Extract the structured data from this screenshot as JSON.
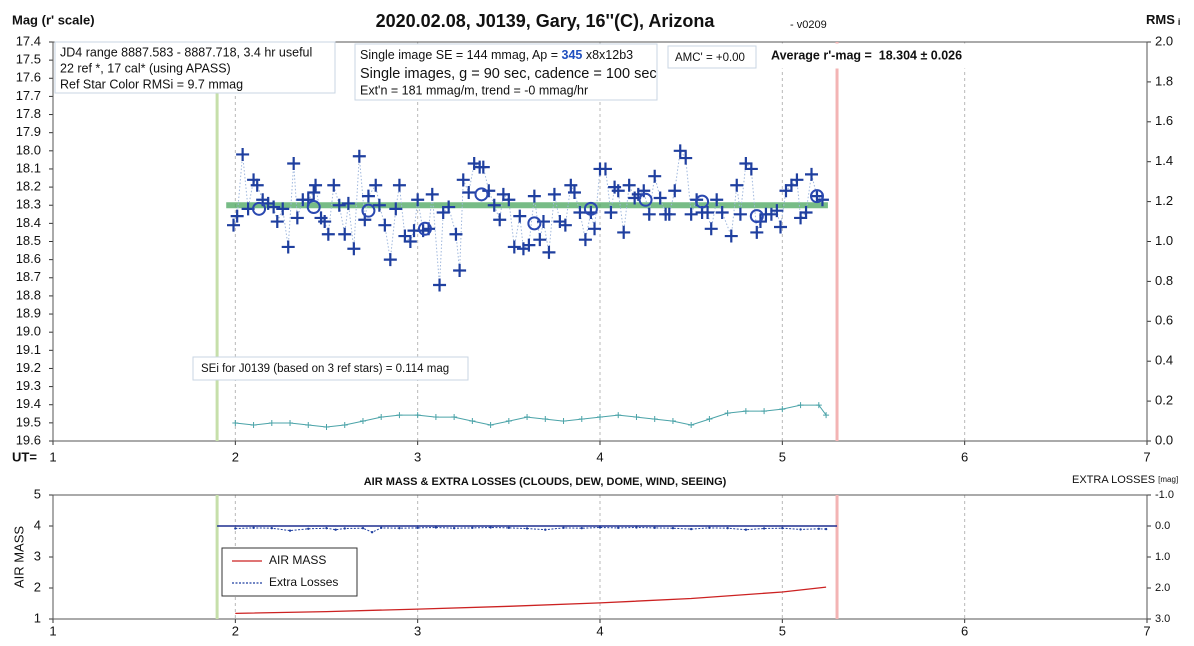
{
  "chart_data": [
    {
      "type": "scatter",
      "title": "2020.02.08, J0139, Gary, 16''(C), Arizona",
      "subtitle": "- v0209",
      "ylabel": "Mag (r' scale)",
      "y2label": "RMS",
      "y2label_subscript": "i",
      "xlabel": "UT=",
      "xlim": [
        1,
        7
      ],
      "xticks": [
        1,
        2,
        3,
        4,
        5,
        6,
        7
      ],
      "ylim": [
        19.6,
        17.4
      ],
      "yticks": [
        {
          "value": 17.4,
          "label": "17.4"
        },
        {
          "value": 17.5,
          "label": "17.5"
        },
        {
          "value": 17.6,
          "label": "17.6"
        },
        {
          "value": 17.7,
          "label": "17.7"
        },
        {
          "value": 17.8,
          "label": "17.8"
        },
        {
          "value": 17.9,
          "label": "17.9"
        },
        {
          "value": 18.0,
          "label": "18.0"
        },
        {
          "value": 18.1,
          "label": "18.1"
        },
        {
          "value": 18.2,
          "label": "18.2"
        },
        {
          "value": 18.3,
          "label": "18.3"
        },
        {
          "value": 18.4,
          "label": "18.4"
        },
        {
          "value": 18.5,
          "label": "18.5"
        },
        {
          "value": 18.6,
          "label": "18.6"
        },
        {
          "value": 18.7,
          "label": "18.7"
        },
        {
          "value": 18.8,
          "label": "18.8"
        },
        {
          "value": 18.9,
          "label": "18.9"
        },
        {
          "value": 19.0,
          "label": "19.0"
        },
        {
          "value": 19.1,
          "label": "19.1"
        },
        {
          "value": 19.2,
          "label": "19.2"
        },
        {
          "value": 19.3,
          "label": "19.3"
        },
        {
          "value": 19.4,
          "label": "19.4"
        },
        {
          "value": 19.5,
          "label": "19.5"
        },
        {
          "value": 19.6,
          "label": "19.6"
        }
      ],
      "y2lim": [
        0,
        2
      ],
      "y2ticks": [
        {
          "value": 0,
          "label": "0.0"
        },
        {
          "value": 0.2,
          "label": "0.2"
        },
        {
          "value": 0.4,
          "label": "0.4"
        },
        {
          "value": 0.6,
          "label": "0.6"
        },
        {
          "value": 0.8,
          "label": "0.8"
        },
        {
          "value": 1.0,
          "label": "1.0"
        },
        {
          "value": 1.2,
          "label": "1.2"
        },
        {
          "value": 1.4,
          "label": "1.4"
        },
        {
          "value": 1.6,
          "label": "1.6"
        },
        {
          "value": 1.8,
          "label": "1.8"
        },
        {
          "value": 2.0,
          "label": "2.0"
        }
      ],
      "grid": "x",
      "vlines": [
        {
          "x": 1.9,
          "color": "#c6dfaa"
        },
        {
          "x": 5.3,
          "color": "#f3b4b4"
        }
      ],
      "mean_line": {
        "value": 18.3,
        "x": [
          1.95,
          5.25
        ],
        "color": "#4aa55e"
      },
      "series": [
        {
          "marker": "plus",
          "color": "#1f3f9f",
          "connect_color": "#9fb7dd",
          "x": [
            1.99,
            2.01,
            2.04,
            2.07,
            2.1,
            2.12,
            2.15,
            2.18,
            2.21,
            2.23,
            2.26,
            2.29,
            2.32,
            2.34,
            2.37,
            2.4,
            2.43,
            2.44,
            2.47,
            2.49,
            2.51,
            2.54,
            2.57,
            2.6,
            2.62,
            2.65,
            2.68,
            2.71,
            2.73,
            2.77,
            2.79,
            2.82,
            2.85,
            2.88,
            2.9,
            2.93,
            2.96,
            2.98,
            3.0,
            3.03,
            3.06,
            3.08,
            3.12,
            3.14,
            3.17,
            3.21,
            3.23,
            3.25,
            3.28,
            3.31,
            3.34,
            3.36,
            3.39,
            3.42,
            3.45,
            3.47,
            3.5,
            3.53,
            3.56,
            3.58,
            3.61,
            3.64,
            3.67,
            3.69,
            3.72,
            3.75,
            3.78,
            3.81,
            3.84,
            3.86,
            3.89,
            3.92,
            3.95,
            3.97,
            4.0,
            4.03,
            4.06,
            4.08,
            4.1,
            4.13,
            4.16,
            4.19,
            4.21,
            4.24,
            4.27,
            4.3,
            4.33,
            4.36,
            4.38,
            4.41,
            4.44,
            4.47,
            4.5,
            4.53,
            4.56,
            4.59,
            4.61,
            4.64,
            4.67,
            4.72,
            4.75,
            4.77,
            4.8,
            4.83,
            4.86,
            4.88,
            4.91,
            4.94,
            4.97,
            4.99,
            5.02,
            5.05,
            5.08,
            5.1,
            5.13,
            5.16,
            5.19,
            5.22
          ],
          "values": [
            18.41,
            18.36,
            18.02,
            18.32,
            18.16,
            18.19,
            18.27,
            18.29,
            18.31,
            18.39,
            18.32,
            18.53,
            18.07,
            18.37,
            18.27,
            18.27,
            18.23,
            18.19,
            18.37,
            18.39,
            18.46,
            18.19,
            18.3,
            18.46,
            18.29,
            18.54,
            18.03,
            18.38,
            18.25,
            18.19,
            18.3,
            18.41,
            18.6,
            18.32,
            18.19,
            18.47,
            18.5,
            18.44,
            18.27,
            18.44,
            18.43,
            18.24,
            18.74,
            18.34,
            18.31,
            18.46,
            18.66,
            18.16,
            18.23,
            18.07,
            18.09,
            18.09,
            18.22,
            18.3,
            18.38,
            18.24,
            18.27,
            18.53,
            18.36,
            18.54,
            18.52,
            18.25,
            18.49,
            18.39,
            18.56,
            18.24,
            18.39,
            18.41,
            18.19,
            18.23,
            18.34,
            18.49,
            18.34,
            18.43,
            18.1,
            18.1,
            18.34,
            18.2,
            18.22,
            18.45,
            18.19,
            18.26,
            18.24,
            18.22,
            18.35,
            18.14,
            18.26,
            18.35,
            18.35,
            18.22,
            18.0,
            18.04,
            18.35,
            18.27,
            18.34,
            18.34,
            18.43,
            18.27,
            18.34,
            18.47,
            18.19,
            18.35,
            18.07,
            18.1,
            18.45,
            18.39,
            18.35,
            18.35,
            18.33,
            18.42,
            18.22,
            18.19,
            18.16,
            18.37,
            18.34,
            18.13,
            18.25,
            18.27
          ]
        },
        {
          "marker": "circle",
          "color": "#2a48b0",
          "x": [
            2.13,
            2.43,
            2.73,
            3.04,
            3.35,
            3.64,
            3.95,
            4.25,
            4.56,
            4.86,
            5.19
          ],
          "values": [
            18.32,
            18.31,
            18.33,
            18.43,
            18.24,
            18.4,
            18.32,
            18.27,
            18.28,
            18.36,
            18.25
          ]
        },
        {
          "marker": "small-plus",
          "color": "#4aa3a8",
          "axis": "y2",
          "x": [
            2.0,
            2.1,
            2.2,
            2.3,
            2.4,
            2.5,
            2.6,
            2.7,
            2.8,
            2.9,
            3.0,
            3.1,
            3.2,
            3.3,
            3.4,
            3.5,
            3.6,
            3.7,
            3.8,
            3.9,
            4.0,
            4.1,
            4.2,
            4.3,
            4.4,
            4.5,
            4.6,
            4.7,
            4.8,
            4.9,
            5.0,
            5.1,
            5.2,
            5.24
          ],
          "values": [
            0.09,
            0.08,
            0.09,
            0.09,
            0.08,
            0.07,
            0.08,
            0.1,
            0.12,
            0.13,
            0.13,
            0.12,
            0.12,
            0.1,
            0.08,
            0.1,
            0.12,
            0.11,
            0.1,
            0.11,
            0.12,
            0.13,
            0.12,
            0.11,
            0.1,
            0.08,
            0.11,
            0.14,
            0.15,
            0.15,
            0.16,
            0.18,
            0.18,
            0.13
          ]
        }
      ],
      "annotations": [
        {
          "lines": [
            "JD4 range 8887.583 - 8887.718, 3.4 hr useful",
            "22 ref *, 17 cal* (using APASS)",
            "Ref Star Color RMSi = 9.7 mmag"
          ]
        },
        {
          "lines": [
            [
              "Single image SE = 144 mmag, Ap = ",
              "345",
              " x8x12b3"
            ],
            "Single images, g = 90 sec, cadence = 100 sec",
            "Ext'n = 181 mmag/m, trend = -0 mmag/hr"
          ]
        },
        {
          "lines": [
            "AMC' = +0.00"
          ]
        },
        {
          "lines": [
            "Average r'-mag =  18.304 ± 0.026"
          ]
        },
        {
          "lines": [
            "SEi for J0139 (based on 3 ref stars) = 0.114 mag"
          ]
        }
      ]
    },
    {
      "type": "line",
      "title": "AIR MASS & EXTRA LOSSES (CLOUDS, DEW, DOME, WIND, SEEING)",
      "ylabel": "AIR MASS",
      "y2label": "EXTRA LOSSES",
      "y2label_unit": "[mag]",
      "xlim": [
        1,
        7
      ],
      "xticks": [
        1,
        2,
        3,
        4,
        5,
        6,
        7
      ],
      "ylim": [
        1,
        5
      ],
      "yticks": [
        1,
        2,
        3,
        4,
        5
      ],
      "y2lim": [
        3,
        -1
      ],
      "y2ticks": [
        {
          "value": -1,
          "label": "-1.0"
        },
        {
          "value": 0,
          "label": "0.0"
        },
        {
          "value": 1,
          "label": "1.0"
        },
        {
          "value": 2,
          "label": "2.0"
        },
        {
          "value": 3,
          "label": "3.0"
        }
      ],
      "grid": "x",
      "vlines": [
        {
          "x": 1.9,
          "color": "#c6dfaa"
        },
        {
          "x": 5.3,
          "color": "#f3b4b4"
        }
      ],
      "zero_line": {
        "value": 0,
        "x": [
          1.9,
          5.3
        ],
        "color": "#1f2f8f"
      },
      "series": [
        {
          "name": "AIR MASS",
          "color": "#cc2222",
          "x": [
            2.0,
            2.5,
            3.0,
            3.5,
            4.0,
            4.5,
            5.0,
            5.24
          ],
          "values": [
            1.18,
            1.24,
            1.32,
            1.41,
            1.52,
            1.66,
            1.87,
            2.03
          ]
        },
        {
          "name": "Extra Losses",
          "color": "#1f3fa0",
          "axis": "y2",
          "dashed": true,
          "x": [
            2.0,
            2.1,
            2.2,
            2.3,
            2.4,
            2.5,
            2.55,
            2.6,
            2.7,
            2.75,
            2.8,
            2.9,
            3.0,
            3.1,
            3.2,
            3.3,
            3.4,
            3.5,
            3.6,
            3.7,
            3.8,
            3.9,
            4.0,
            4.1,
            4.2,
            4.3,
            4.4,
            4.5,
            4.6,
            4.7,
            4.8,
            4.9,
            5.0,
            5.1,
            5.2,
            5.24
          ],
          "values": [
            0.08,
            0.06,
            0.07,
            0.15,
            0.09,
            0.07,
            0.12,
            0.08,
            0.07,
            0.2,
            0.06,
            0.07,
            0.06,
            0.05,
            0.07,
            0.06,
            0.05,
            0.06,
            0.08,
            0.12,
            0.06,
            0.07,
            0.05,
            0.06,
            0.05,
            0.06,
            0.07,
            0.1,
            0.06,
            0.07,
            0.12,
            0.08,
            0.07,
            0.11,
            0.09,
            0.1
          ]
        }
      ]
    }
  ]
}
